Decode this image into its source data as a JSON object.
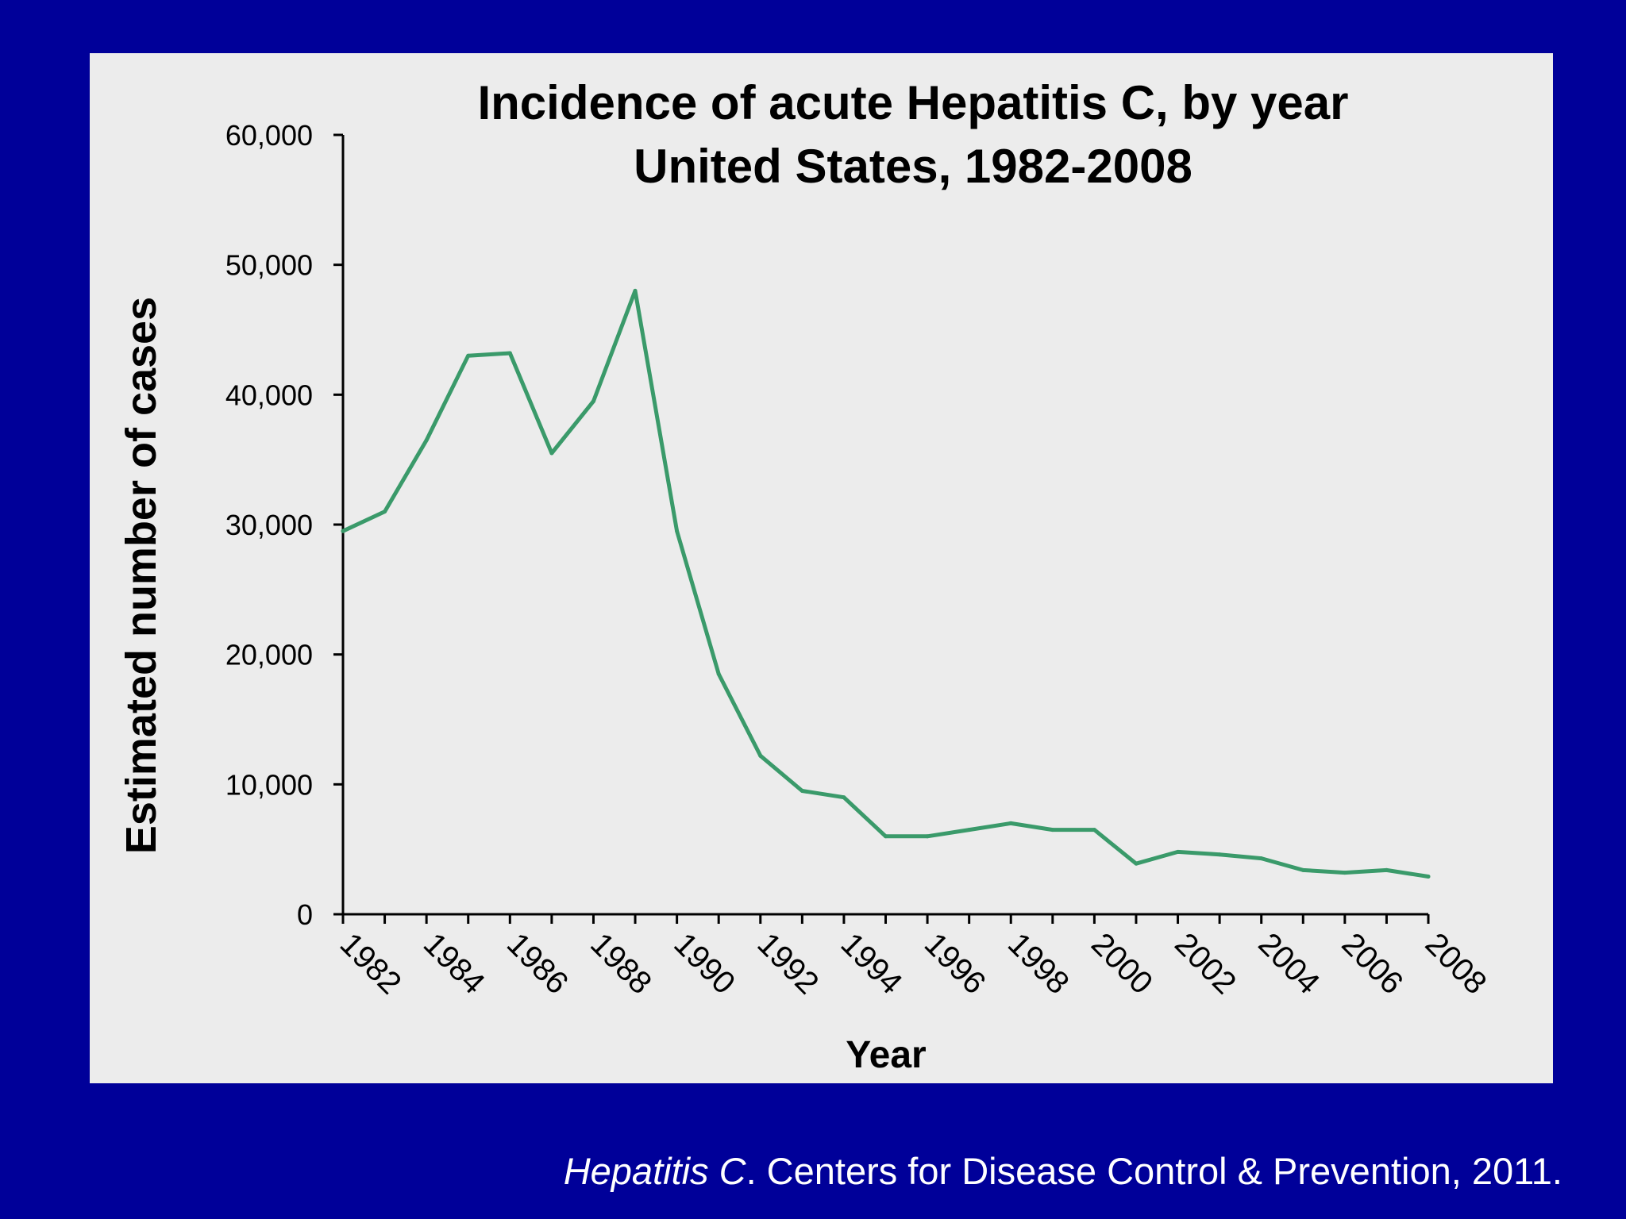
{
  "colors": {
    "background": "#000099",
    "panel": "#ececec",
    "line": "#3a9a6a",
    "text": "#000000",
    "citation": "#ffffff"
  },
  "citation": {
    "italic": "Hepatitis C",
    "rest": ". Centers for Disease Control & Prevention, 2011."
  },
  "chart_data": {
    "type": "line",
    "title": "Incidence of acute Hepatitis C, by year",
    "subtitle": "United States, 1982-2008",
    "xlabel": "Year",
    "ylabel": "Estimated number of cases",
    "ylim": [
      0,
      60000
    ],
    "xlim": [
      1982,
      2008
    ],
    "grid": false,
    "y_ticks": [
      "0",
      "10,000",
      "20,000",
      "30,000",
      "40,000",
      "50,000",
      "60,000"
    ],
    "y_tick_values": [
      0,
      10000,
      20000,
      30000,
      40000,
      50000,
      60000
    ],
    "x_tick_labels": [
      "1982",
      "1984",
      "1986",
      "1988",
      "1990",
      "1992",
      "1994",
      "1996",
      "1998",
      "2000",
      "2002",
      "2004",
      "2006",
      "2008"
    ],
    "x": [
      1982,
      1983,
      1984,
      1985,
      1986,
      1987,
      1988,
      1989,
      1990,
      1991,
      1992,
      1993,
      1994,
      1995,
      1996,
      1997,
      1998,
      1999,
      2000,
      2001,
      2002,
      2003,
      2004,
      2005,
      2006,
      2007,
      2008
    ],
    "series": [
      {
        "values": [
          29500,
          31000,
          36500,
          43000,
          43200,
          35500,
          39500,
          48000,
          29500,
          18500,
          12200,
          9500,
          9000,
          6000,
          6000,
          6500,
          7000,
          6500,
          6500,
          3900,
          4800,
          4600,
          4300,
          3400,
          3200,
          3400,
          2900
        ]
      }
    ]
  }
}
